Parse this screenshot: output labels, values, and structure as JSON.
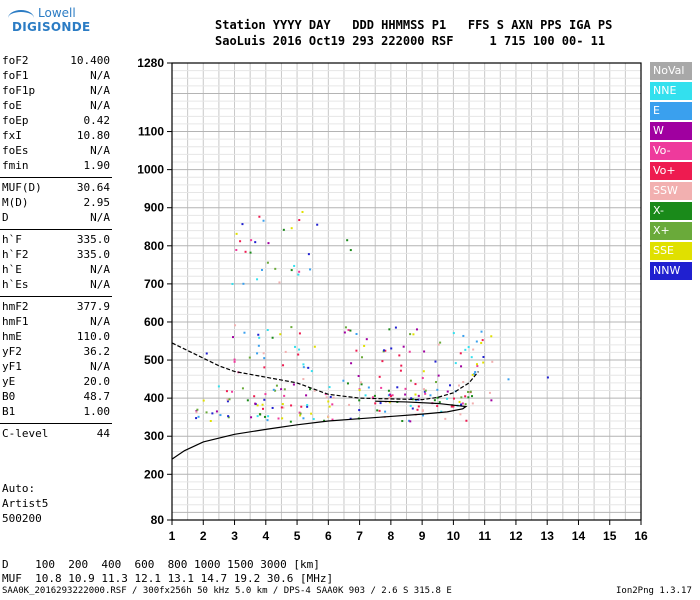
{
  "logo": {
    "line1": "Lowell",
    "line2": "DIGISONDE"
  },
  "header": {
    "line1": "Station YYYY DAY   DDD HHMMSS P1   FFS S AXN PPS IGA PS",
    "line2": "SaoLuis 2016 Oct19 293 222000 RSF     1 715 100 00- 11"
  },
  "params_groups": [
    [
      {
        "name": "foF2",
        "value": "10.400"
      },
      {
        "name": "foF1",
        "value": "N/A"
      },
      {
        "name": "foF1p",
        "value": "N/A"
      },
      {
        "name": "foE",
        "value": "N/A"
      },
      {
        "name": "foEp",
        "value": "0.42"
      },
      {
        "name": "fxI",
        "value": "10.80"
      },
      {
        "name": "foEs",
        "value": "N/A"
      },
      {
        "name": "fmin",
        "value": "1.90"
      }
    ],
    [
      {
        "name": "MUF(D)",
        "value": "30.64"
      },
      {
        "name": "M(D)",
        "value": "2.95"
      },
      {
        "name": "D",
        "value": "N/A"
      }
    ],
    [
      {
        "name": "h`F",
        "value": "335.0"
      },
      {
        "name": "h`F2",
        "value": "335.0"
      },
      {
        "name": "h`E",
        "value": "N/A"
      },
      {
        "name": "h`Es",
        "value": "N/A"
      }
    ],
    [
      {
        "name": "hmF2",
        "value": "377.9"
      },
      {
        "name": "hmF1",
        "value": "N/A"
      },
      {
        "name": "hmE",
        "value": "110.0"
      },
      {
        "name": "yF2",
        "value": "36.2"
      },
      {
        "name": "yF1",
        "value": "N/A"
      },
      {
        "name": "yE",
        "value": "20.0"
      },
      {
        "name": "B0",
        "value": "48.7"
      },
      {
        "name": "B1",
        "value": "1.00"
      }
    ],
    [
      {
        "name": "C-level",
        "value": "44"
      }
    ]
  ],
  "auto": {
    "l1": "Auto:",
    "l2": "Artist5",
    "l3": "500200"
  },
  "muf_table": {
    "line1": "D    100  200  400  600  800 1000 1500 3000 [km]",
    "line2": "MUF  10.8 10.9 11.3 12.1 13.1 14.7 19.2 30.6 [MHz]"
  },
  "footer": {
    "left": "SAA0K_2016293222000.RSF / 300fx256h 50 kHz 5.0 km / DPS-4 SAA0K 903 / 2.6 S 315.8 E",
    "right": "Ion2Png 1.3.17"
  },
  "legend": [
    {
      "label": "NoVal",
      "color": "#a8a8a8"
    },
    {
      "label": "NNE",
      "color": "#33e0ee"
    },
    {
      "label": "E",
      "color": "#3aa0ee"
    },
    {
      "label": "W",
      "color": "#a000a0"
    },
    {
      "label": "Vo-",
      "color": "#ee3a9c"
    },
    {
      "label": "Vo+",
      "color": "#ee1b50"
    },
    {
      "label": "SSW",
      "color": "#f2b0b0"
    },
    {
      "label": "X-",
      "color": "#1a8a1a"
    },
    {
      "label": "X+",
      "color": "#6aaa3a"
    },
    {
      "label": "SSE",
      "color": "#e0e000"
    },
    {
      "label": "NNW",
      "color": "#2020d0"
    }
  ],
  "chart_data": {
    "type": "scatter",
    "xlim": [
      1,
      16
    ],
    "ylim": [
      80,
      1280
    ],
    "x_ticks": [
      1,
      2,
      3,
      4,
      5,
      6,
      7,
      8,
      9,
      10,
      11,
      12,
      13,
      14,
      15,
      16
    ],
    "y_ticks": [
      80,
      200,
      300,
      400,
      500,
      600,
      700,
      800,
      900,
      1000,
      1100,
      1280
    ],
    "grid": true,
    "traces": [
      {
        "name": "profile",
        "color": "#000000",
        "points": [
          [
            1.0,
            240
          ],
          [
            1.4,
            262
          ],
          [
            2.0,
            285
          ],
          [
            3.0,
            305
          ],
          [
            4.0,
            318
          ],
          [
            5.0,
            330
          ],
          [
            6.0,
            340
          ],
          [
            7.0,
            346
          ],
          [
            8.0,
            352
          ],
          [
            9.0,
            358
          ],
          [
            9.8,
            364
          ],
          [
            10.3,
            372
          ],
          [
            10.4,
            378
          ],
          [
            9.5,
            386
          ],
          [
            8.5,
            390
          ],
          [
            7.5,
            392
          ]
        ]
      },
      {
        "name": "trace",
        "color": "#000000",
        "points": [
          [
            1.0,
            545
          ],
          [
            1.5,
            525
          ],
          [
            2.0,
            505
          ],
          [
            2.5,
            485
          ],
          [
            3.0,
            470
          ],
          [
            4.0,
            455
          ],
          [
            5.0,
            440
          ],
          [
            6.0,
            410
          ],
          [
            7.0,
            400
          ],
          [
            8.0,
            398
          ],
          [
            9.0,
            396
          ],
          [
            9.5,
            402
          ],
          [
            10.0,
            414
          ],
          [
            10.5,
            440
          ],
          [
            10.8,
            470
          ]
        ]
      }
    ],
    "scatter_regions": [
      {
        "x": [
          1.7,
          10.6
        ],
        "y": [
          340,
          440
        ],
        "density": 1.0
      },
      {
        "x": [
          2.9,
          5.6
        ],
        "y": [
          450,
          600
        ],
        "density": 0.45
      },
      {
        "x": [
          6.3,
          7.2
        ],
        "y": [
          420,
          600
        ],
        "density": 0.6
      },
      {
        "x": [
          7.6,
          8.7
        ],
        "y": [
          400,
          590
        ],
        "density": 0.55
      },
      {
        "x": [
          8.7,
          9.6
        ],
        "y": [
          380,
          600
        ],
        "density": 0.4
      },
      {
        "x": [
          9.9,
          11.3
        ],
        "y": [
          380,
          600
        ],
        "density": 0.55
      },
      {
        "x": [
          2.9,
          5.8
        ],
        "y": [
          700,
          900
        ],
        "density": 0.3
      },
      {
        "x": [
          6.3,
          6.9
        ],
        "y": [
          780,
          830
        ],
        "density": 0.4
      },
      {
        "x": [
          10.5,
          14.8
        ],
        "y": [
          440,
          480
        ],
        "density": 0.15
      },
      {
        "x": [
          1.7,
          2.2
        ],
        "y": [
          500,
          530
        ],
        "density": 0.5
      }
    ]
  }
}
